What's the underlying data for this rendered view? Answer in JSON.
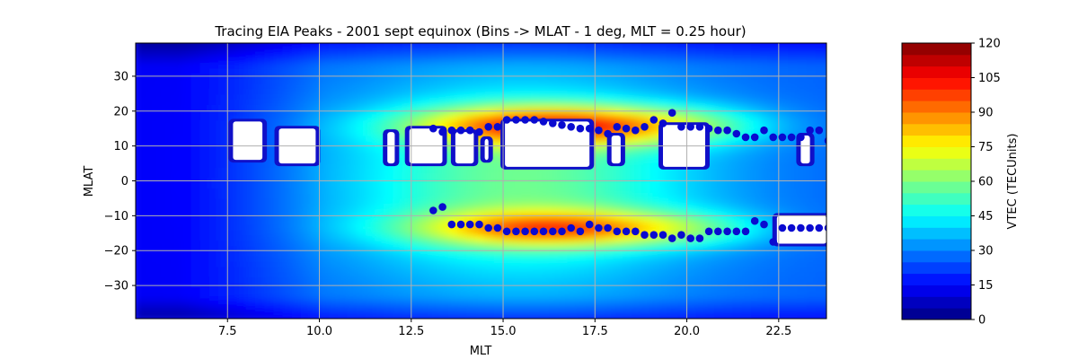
{
  "chart_data": {
    "type": "heatmap",
    "title": "Tracing EIA Peaks - 2001 sept equinox (Bins -> MLAT - 1 deg, MLT = 0.25 hour)",
    "xlabel": "MLT",
    "ylabel": "MLAT",
    "colorbar_label": "VTEC (TECUnits)",
    "xlim": [
      5.0,
      23.8
    ],
    "ylim": [
      -39.5,
      39.5
    ],
    "xticks": [
      7.5,
      10.0,
      12.5,
      15.0,
      17.5,
      20.0,
      22.5
    ],
    "xtick_labels": [
      "7.5",
      "10.0",
      "12.5",
      "15.0",
      "17.5",
      "20.0",
      "22.5"
    ],
    "yticks": [
      -30,
      -20,
      -10,
      0,
      10,
      20,
      30
    ],
    "ytick_labels": [
      "−30",
      "−20",
      "−10",
      "0",
      "10",
      "20",
      "30"
    ],
    "colorbar_range": [
      0,
      120
    ],
    "colorbar_ticks": [
      0,
      15,
      30,
      45,
      60,
      75,
      90,
      105,
      120
    ],
    "colorbar_tick_labels": [
      "0",
      "15",
      "30",
      "45",
      "60",
      "75",
      "90",
      "105",
      "120"
    ],
    "colormap": "jet",
    "grid": true,
    "marker_color": "#0a0ad0",
    "series": [
      {
        "kind": "scatter",
        "points": [
          [
            13.1,
            15.0
          ],
          [
            13.35,
            14.0
          ],
          [
            13.6,
            14.5
          ],
          [
            13.85,
            14.5
          ],
          [
            14.1,
            14.5
          ],
          [
            14.35,
            14.0
          ],
          [
            14.6,
            15.5
          ],
          [
            14.85,
            15.5
          ],
          [
            15.1,
            17.5
          ],
          [
            15.35,
            17.5
          ],
          [
            15.6,
            17.5
          ],
          [
            15.85,
            17.5
          ],
          [
            16.1,
            17.0
          ],
          [
            16.35,
            16.5
          ],
          [
            16.6,
            16.0
          ],
          [
            16.85,
            15.5
          ],
          [
            17.1,
            15.0
          ],
          [
            17.35,
            15.0
          ],
          [
            17.6,
            14.5
          ],
          [
            17.85,
            13.5
          ],
          [
            18.1,
            15.5
          ],
          [
            18.35,
            15.0
          ],
          [
            18.6,
            14.5
          ],
          [
            18.85,
            15.5
          ],
          [
            19.1,
            17.5
          ],
          [
            19.35,
            16.5
          ],
          [
            19.6,
            19.5
          ],
          [
            19.85,
            15.5
          ],
          [
            20.1,
            15.5
          ],
          [
            20.35,
            15.5
          ],
          [
            20.6,
            15.0
          ],
          [
            20.85,
            14.5
          ],
          [
            21.1,
            14.5
          ],
          [
            21.35,
            13.5
          ],
          [
            21.6,
            12.5
          ],
          [
            21.85,
            12.5
          ],
          [
            22.1,
            14.5
          ],
          [
            22.35,
            12.5
          ],
          [
            22.6,
            12.5
          ],
          [
            22.85,
            12.5
          ],
          [
            23.1,
            12.5
          ],
          [
            23.35,
            14.5
          ],
          [
            23.6,
            14.5
          ],
          [
            23.85,
            11.5
          ],
          [
            13.1,
            -8.5
          ],
          [
            13.35,
            -7.5
          ],
          [
            13.6,
            -12.5
          ],
          [
            13.85,
            -12.5
          ],
          [
            14.1,
            -12.5
          ],
          [
            14.35,
            -12.5
          ],
          [
            14.6,
            -13.5
          ],
          [
            14.85,
            -13.5
          ],
          [
            15.1,
            -14.5
          ],
          [
            15.35,
            -14.5
          ],
          [
            15.6,
            -14.5
          ],
          [
            15.85,
            -14.5
          ],
          [
            16.1,
            -14.5
          ],
          [
            16.35,
            -14.5
          ],
          [
            16.6,
            -14.5
          ],
          [
            16.85,
            -13.5
          ],
          [
            17.1,
            -14.5
          ],
          [
            17.35,
            -12.5
          ],
          [
            17.6,
            -13.5
          ],
          [
            17.85,
            -13.5
          ],
          [
            18.1,
            -14.5
          ],
          [
            18.35,
            -14.5
          ],
          [
            18.6,
            -14.5
          ],
          [
            18.85,
            -15.5
          ],
          [
            19.1,
            -15.5
          ],
          [
            19.35,
            -15.5
          ],
          [
            19.6,
            -16.5
          ],
          [
            19.85,
            -15.5
          ],
          [
            20.1,
            -16.5
          ],
          [
            20.35,
            -16.5
          ],
          [
            20.6,
            -14.5
          ],
          [
            20.85,
            -14.5
          ],
          [
            21.1,
            -14.5
          ],
          [
            21.35,
            -14.5
          ],
          [
            21.6,
            -14.5
          ],
          [
            21.85,
            -11.5
          ],
          [
            22.1,
            -12.5
          ],
          [
            22.35,
            -17.5
          ],
          [
            22.6,
            -13.5
          ],
          [
            22.85,
            -13.5
          ],
          [
            23.1,
            -13.5
          ],
          [
            23.35,
            -13.5
          ],
          [
            23.6,
            -13.5
          ],
          [
            23.85,
            -13.5
          ]
        ]
      }
    ]
  }
}
